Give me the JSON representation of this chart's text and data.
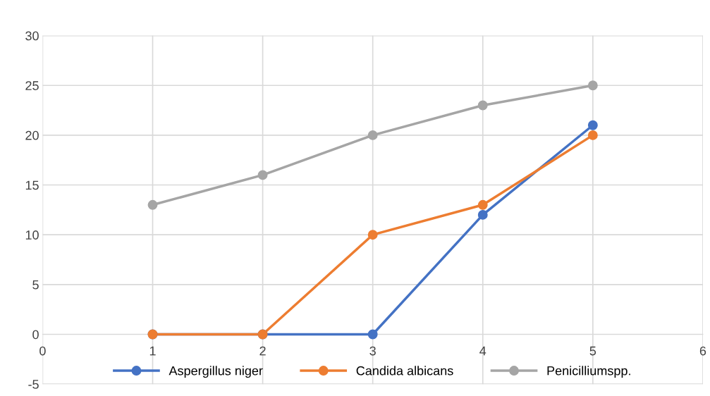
{
  "chart_data": {
    "type": "line",
    "x": [
      1,
      2,
      3,
      4,
      5
    ],
    "series": [
      {
        "name": "Aspergillus niger",
        "color": "#4472c4",
        "values": [
          0,
          0,
          0,
          12,
          21
        ]
      },
      {
        "name": "Candida albicans",
        "color": "#ed7d31",
        "values": [
          0,
          0,
          10,
          13,
          20
        ]
      },
      {
        "name": "Penicilliumspp.",
        "color": "#a5a5a5",
        "values": [
          13,
          16,
          20,
          23,
          25
        ]
      }
    ],
    "xlim": [
      0,
      6
    ],
    "xticks": [
      0,
      1,
      2,
      3,
      4,
      5,
      6
    ],
    "ylim": [
      -5,
      30
    ],
    "yticks": [
      -5,
      0,
      5,
      10,
      15,
      20,
      25,
      30
    ],
    "grid": true,
    "legend": "bottom",
    "marker": "circle",
    "line_style": "solid"
  }
}
